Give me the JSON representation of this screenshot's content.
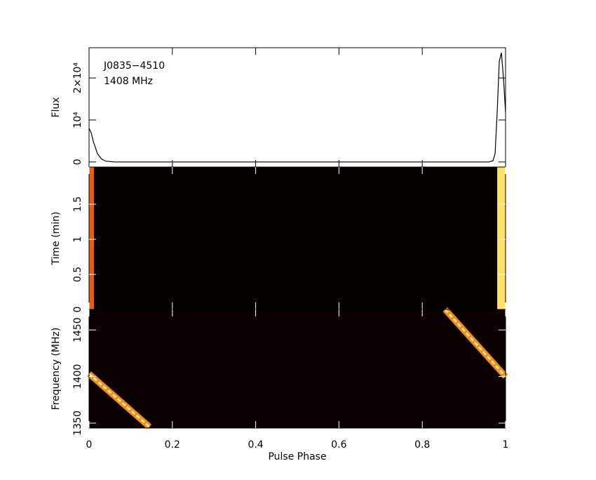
{
  "chart_data": [
    {
      "type": "line",
      "ylabel": "Flux",
      "annotations": [
        "J0835−4510",
        "1408 MHz"
      ],
      "xlim": [
        0,
        1
      ],
      "ylim": [
        -1200,
        27200
      ],
      "yticks": [
        0,
        {
          "value": 10000,
          "label": "10⁴"
        },
        {
          "value": 20000,
          "label": "2×10⁴"
        }
      ],
      "series": [
        {
          "color": "#000000",
          "x": [
            0,
            0.005,
            0.01,
            0.02,
            0.03,
            0.04,
            0.06,
            0.28,
            0.5,
            0.7,
            0.96,
            0.97,
            0.975,
            0.98,
            0.985,
            0.99,
            0.995,
            1.0
          ],
          "values": [
            8000,
            7000,
            5000,
            2000,
            700,
            200,
            0,
            0,
            0,
            0,
            0,
            300,
            2000,
            12000,
            24000,
            26000,
            20000,
            11800
          ]
        }
      ]
    },
    {
      "type": "heatmap",
      "ylabel": "Time (min)",
      "xlim": [
        0,
        1
      ],
      "ylim": [
        0,
        2.03
      ],
      "yticks": [
        0,
        0.5,
        1,
        1.5
      ],
      "background": "#050000",
      "bands": [
        {
          "x": [
            0,
            0.012
          ],
          "color": "#e0601a"
        },
        {
          "x": [
            0.98,
            1.0
          ],
          "color": "#ffe066"
        }
      ]
    },
    {
      "type": "heatmap",
      "ylabel": "Frequency (MHz)",
      "xlabel": "Pulse Phase",
      "xlim": [
        0,
        1
      ],
      "ylim": [
        1344.7,
        1472
      ],
      "xticks": [
        0,
        0.2,
        0.4,
        0.6,
        0.8,
        1
      ],
      "yticks": [
        1350,
        1400,
        1450
      ],
      "background": "#0a0000",
      "sweeps": [
        {
          "x": [
            0,
            0.145
          ],
          "y": [
            1403,
            1346
          ],
          "color": "#f08a20"
        },
        {
          "x": [
            0.855,
            1.0
          ],
          "y": [
            1472,
            1400
          ],
          "color": "#f08a20"
        }
      ]
    }
  ]
}
